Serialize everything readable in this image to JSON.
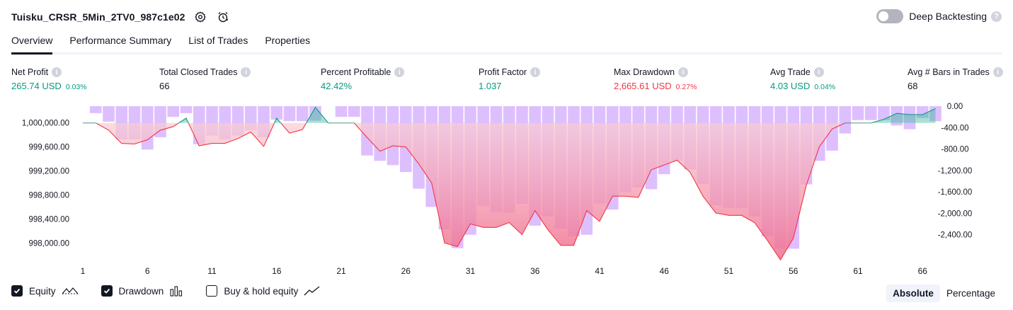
{
  "header": {
    "strategy_name": "Tuisku_CRSR_5Min_2TV0_987c1e02",
    "deep_backtesting_label": "Deep Backtesting",
    "deep_backtesting_enabled": false
  },
  "tabs": [
    {
      "label": "Overview",
      "active": true
    },
    {
      "label": "Performance Summary",
      "active": false
    },
    {
      "label": "List of Trades",
      "active": false
    },
    {
      "label": "Properties",
      "active": false
    }
  ],
  "metrics": [
    {
      "label": "Net Profit",
      "value": "265.74 USD",
      "sub": "0.03%",
      "color": "green"
    },
    {
      "label": "Total Closed Trades",
      "value": "66",
      "sub": "",
      "color": "neutral"
    },
    {
      "label": "Percent Profitable",
      "value": "42.42%",
      "sub": "",
      "color": "green"
    },
    {
      "label": "Profit Factor",
      "value": "1.037",
      "sub": "",
      "color": "green"
    },
    {
      "label": "Max Drawdown",
      "value": "2,665.61 USD",
      "sub": "0.27%",
      "color": "red"
    },
    {
      "label": "Avg Trade",
      "value": "4.03 USD",
      "sub": "0.04%",
      "color": "green"
    },
    {
      "label": "Avg # Bars in Trades",
      "value": "68",
      "sub": "",
      "color": "neutral"
    }
  ],
  "legend": {
    "equity_label": "Equity",
    "equity_checked": true,
    "drawdown_label": "Drawdown",
    "drawdown_checked": true,
    "buyhold_label": "Buy & hold equity",
    "buyhold_checked": false
  },
  "view_toggle": {
    "options": [
      "Absolute",
      "Percentage"
    ],
    "selected": "Absolute"
  },
  "colors": {
    "profit": "#089981",
    "loss": "#f23645",
    "drawdown_bar": "#d8b4fe",
    "equity_line_up": "#089981",
    "equity_line_down": "#f23645",
    "text": "#131722"
  },
  "chart_data": {
    "type": "line",
    "x_ticks": [
      1,
      6,
      11,
      16,
      21,
      26,
      31,
      36,
      41,
      46,
      51,
      56,
      61,
      66
    ],
    "left_axis": {
      "ticks": [
        "1,000,000.00",
        "999,600.00",
        "999,200.00",
        "998,800.00",
        "998,400.00",
        "998,000.00"
      ],
      "tick_values": [
        1000000,
        999600,
        999200,
        998800,
        998400,
        998000
      ],
      "range": [
        997780,
        1000280
      ]
    },
    "right_axis": {
      "ticks": [
        "0.00",
        "-400.00",
        "-800.00",
        "-1,200.00",
        "-1,600.00",
        "-2,000.00",
        "-2,400.00"
      ],
      "tick_values": [
        0,
        -400,
        -800,
        -1200,
        -1600,
        -2000,
        -2400
      ],
      "range": [
        -2800,
        0
      ]
    },
    "series": [
      {
        "name": "Equity",
        "baseline": 1000000,
        "x": [
          1,
          2,
          3,
          4,
          5,
          6,
          7,
          8,
          9,
          10,
          11,
          12,
          13,
          14,
          15,
          16,
          17,
          18,
          19,
          20,
          21,
          22,
          23,
          24,
          25,
          26,
          27,
          28,
          29,
          30,
          31,
          32,
          33,
          34,
          35,
          36,
          37,
          38,
          39,
          40,
          41,
          42,
          43,
          44,
          45,
          46,
          47,
          48,
          49,
          50,
          51,
          52,
          53,
          54,
          55,
          56,
          57,
          58,
          59,
          60,
          61,
          62,
          63,
          64,
          65,
          66,
          67
        ],
        "values": [
          1000000,
          1000000,
          999880,
          999660,
          999650,
          999720,
          999880,
          999940,
          1000080,
          999620,
          999660,
          999660,
          999740,
          999850,
          999610,
          1000080,
          999830,
          999890,
          1000260,
          1000000,
          1000000,
          1000000,
          999760,
          999530,
          999620,
          999600,
          999320,
          999000,
          998000,
          997940,
          998320,
          998260,
          998260,
          998340,
          998140,
          998540,
          998220,
          997960,
          997960,
          998540,
          998360,
          998780,
          998780,
          998760,
          999220,
          999300,
          999380,
          999180,
          998780,
          998500,
          998460,
          998460,
          998340,
          998040,
          997720,
          998080,
          998960,
          999600,
          999900,
          1000000,
          1000000,
          1000000,
          1000060,
          1000160,
          1000140,
          1000140,
          1000240
        ]
      },
      {
        "name": "Drawdown",
        "x": [
          1,
          2,
          3,
          4,
          5,
          6,
          7,
          8,
          9,
          10,
          11,
          12,
          13,
          14,
          15,
          16,
          17,
          18,
          19,
          20,
          21,
          22,
          23,
          24,
          25,
          26,
          27,
          28,
          29,
          30,
          31,
          32,
          33,
          34,
          35,
          36,
          37,
          38,
          39,
          40,
          41,
          42,
          43,
          44,
          45,
          46,
          47,
          48,
          49,
          50,
          51,
          52,
          53,
          54,
          55,
          56,
          57,
          58,
          59,
          60,
          61,
          62,
          63,
          64,
          65,
          66,
          67
        ],
        "values": [
          0,
          -130,
          -290,
          -620,
          -620,
          -810,
          -580,
          -200,
          -130,
          -710,
          -550,
          -620,
          -550,
          -450,
          -580,
          -250,
          -280,
          -280,
          -270,
          0,
          -200,
          -200,
          -920,
          -1020,
          -1100,
          -1230,
          -1540,
          -1880,
          -2300,
          -2650,
          -2400,
          -1860,
          -1980,
          -1990,
          -1820,
          -2230,
          -2060,
          -2290,
          -2430,
          -2400,
          -1820,
          -1930,
          -1610,
          -1520,
          -1550,
          -1270,
          -1020,
          -1180,
          -1450,
          -1850,
          -1900,
          -1900,
          -2060,
          -2430,
          -2660,
          -2660,
          -1460,
          -1020,
          -830,
          -510,
          -260,
          -260,
          -260,
          -360,
          -430,
          -220,
          -280
        ]
      }
    ]
  }
}
